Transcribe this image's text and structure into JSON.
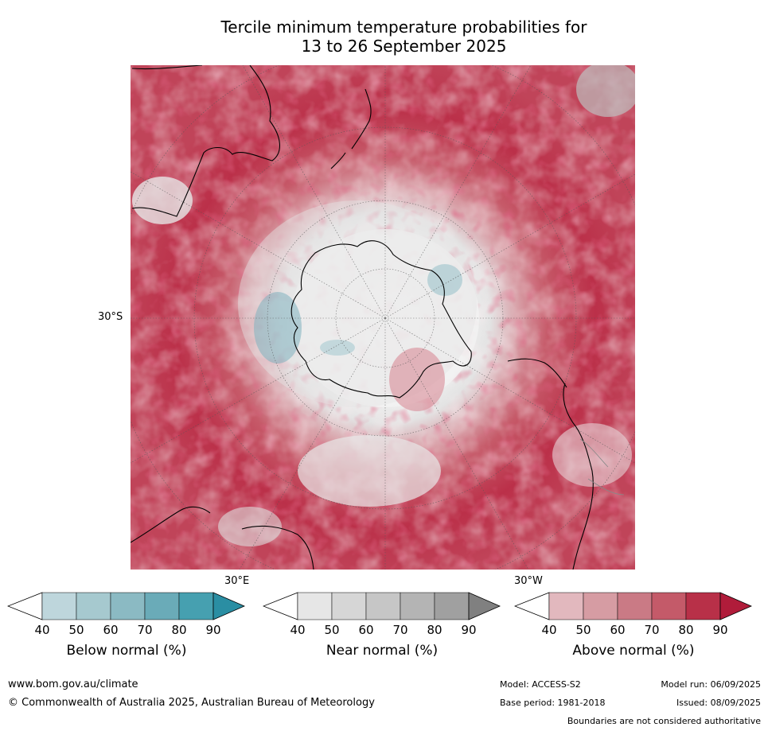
{
  "title_line1": "Tercile minimum temperature probabilities for",
  "title_line2": "13 to 26 September 2025",
  "axis_labels": {
    "lat_30s": "30°S",
    "lon_30e": "30°E",
    "lon_30w": "30°W"
  },
  "colorbars": [
    {
      "label": "Below normal (%)",
      "ticks": [
        "40",
        "50",
        "60",
        "70",
        "80",
        "90"
      ],
      "colors": [
        "#ffffff",
        "#bed6dc",
        "#a6c9cf",
        "#8bbac3",
        "#6aabb8",
        "#46a0b0",
        "#2a8ea3"
      ]
    },
    {
      "label": "Near normal (%)",
      "ticks": [
        "40",
        "50",
        "60",
        "70",
        "80",
        "90"
      ],
      "colors": [
        "#ffffff",
        "#e6e6e6",
        "#d6d6d6",
        "#c6c6c6",
        "#b4b4b4",
        "#a0a0a0",
        "#808080"
      ]
    },
    {
      "label": "Above normal (%)",
      "ticks": [
        "40",
        "50",
        "60",
        "70",
        "80",
        "90"
      ],
      "colors": [
        "#ffffff",
        "#e2b8be",
        "#d69ca3",
        "#ca7a85",
        "#c45a69",
        "#b83048",
        "#b01c3a"
      ]
    }
  ],
  "footer": {
    "website": "www.bom.gov.au/climate",
    "copyright": "© Commonwealth of Australia 2025, Australian Bureau of Meteorology",
    "model": "Model: ACCESS-S2",
    "model_run": "Model run: 06/09/2025",
    "base_period": "Base period: 1981-2018",
    "issued": "Issued: 08/09/2025",
    "disclaimer": "Boundaries are not considered authoritative"
  }
}
